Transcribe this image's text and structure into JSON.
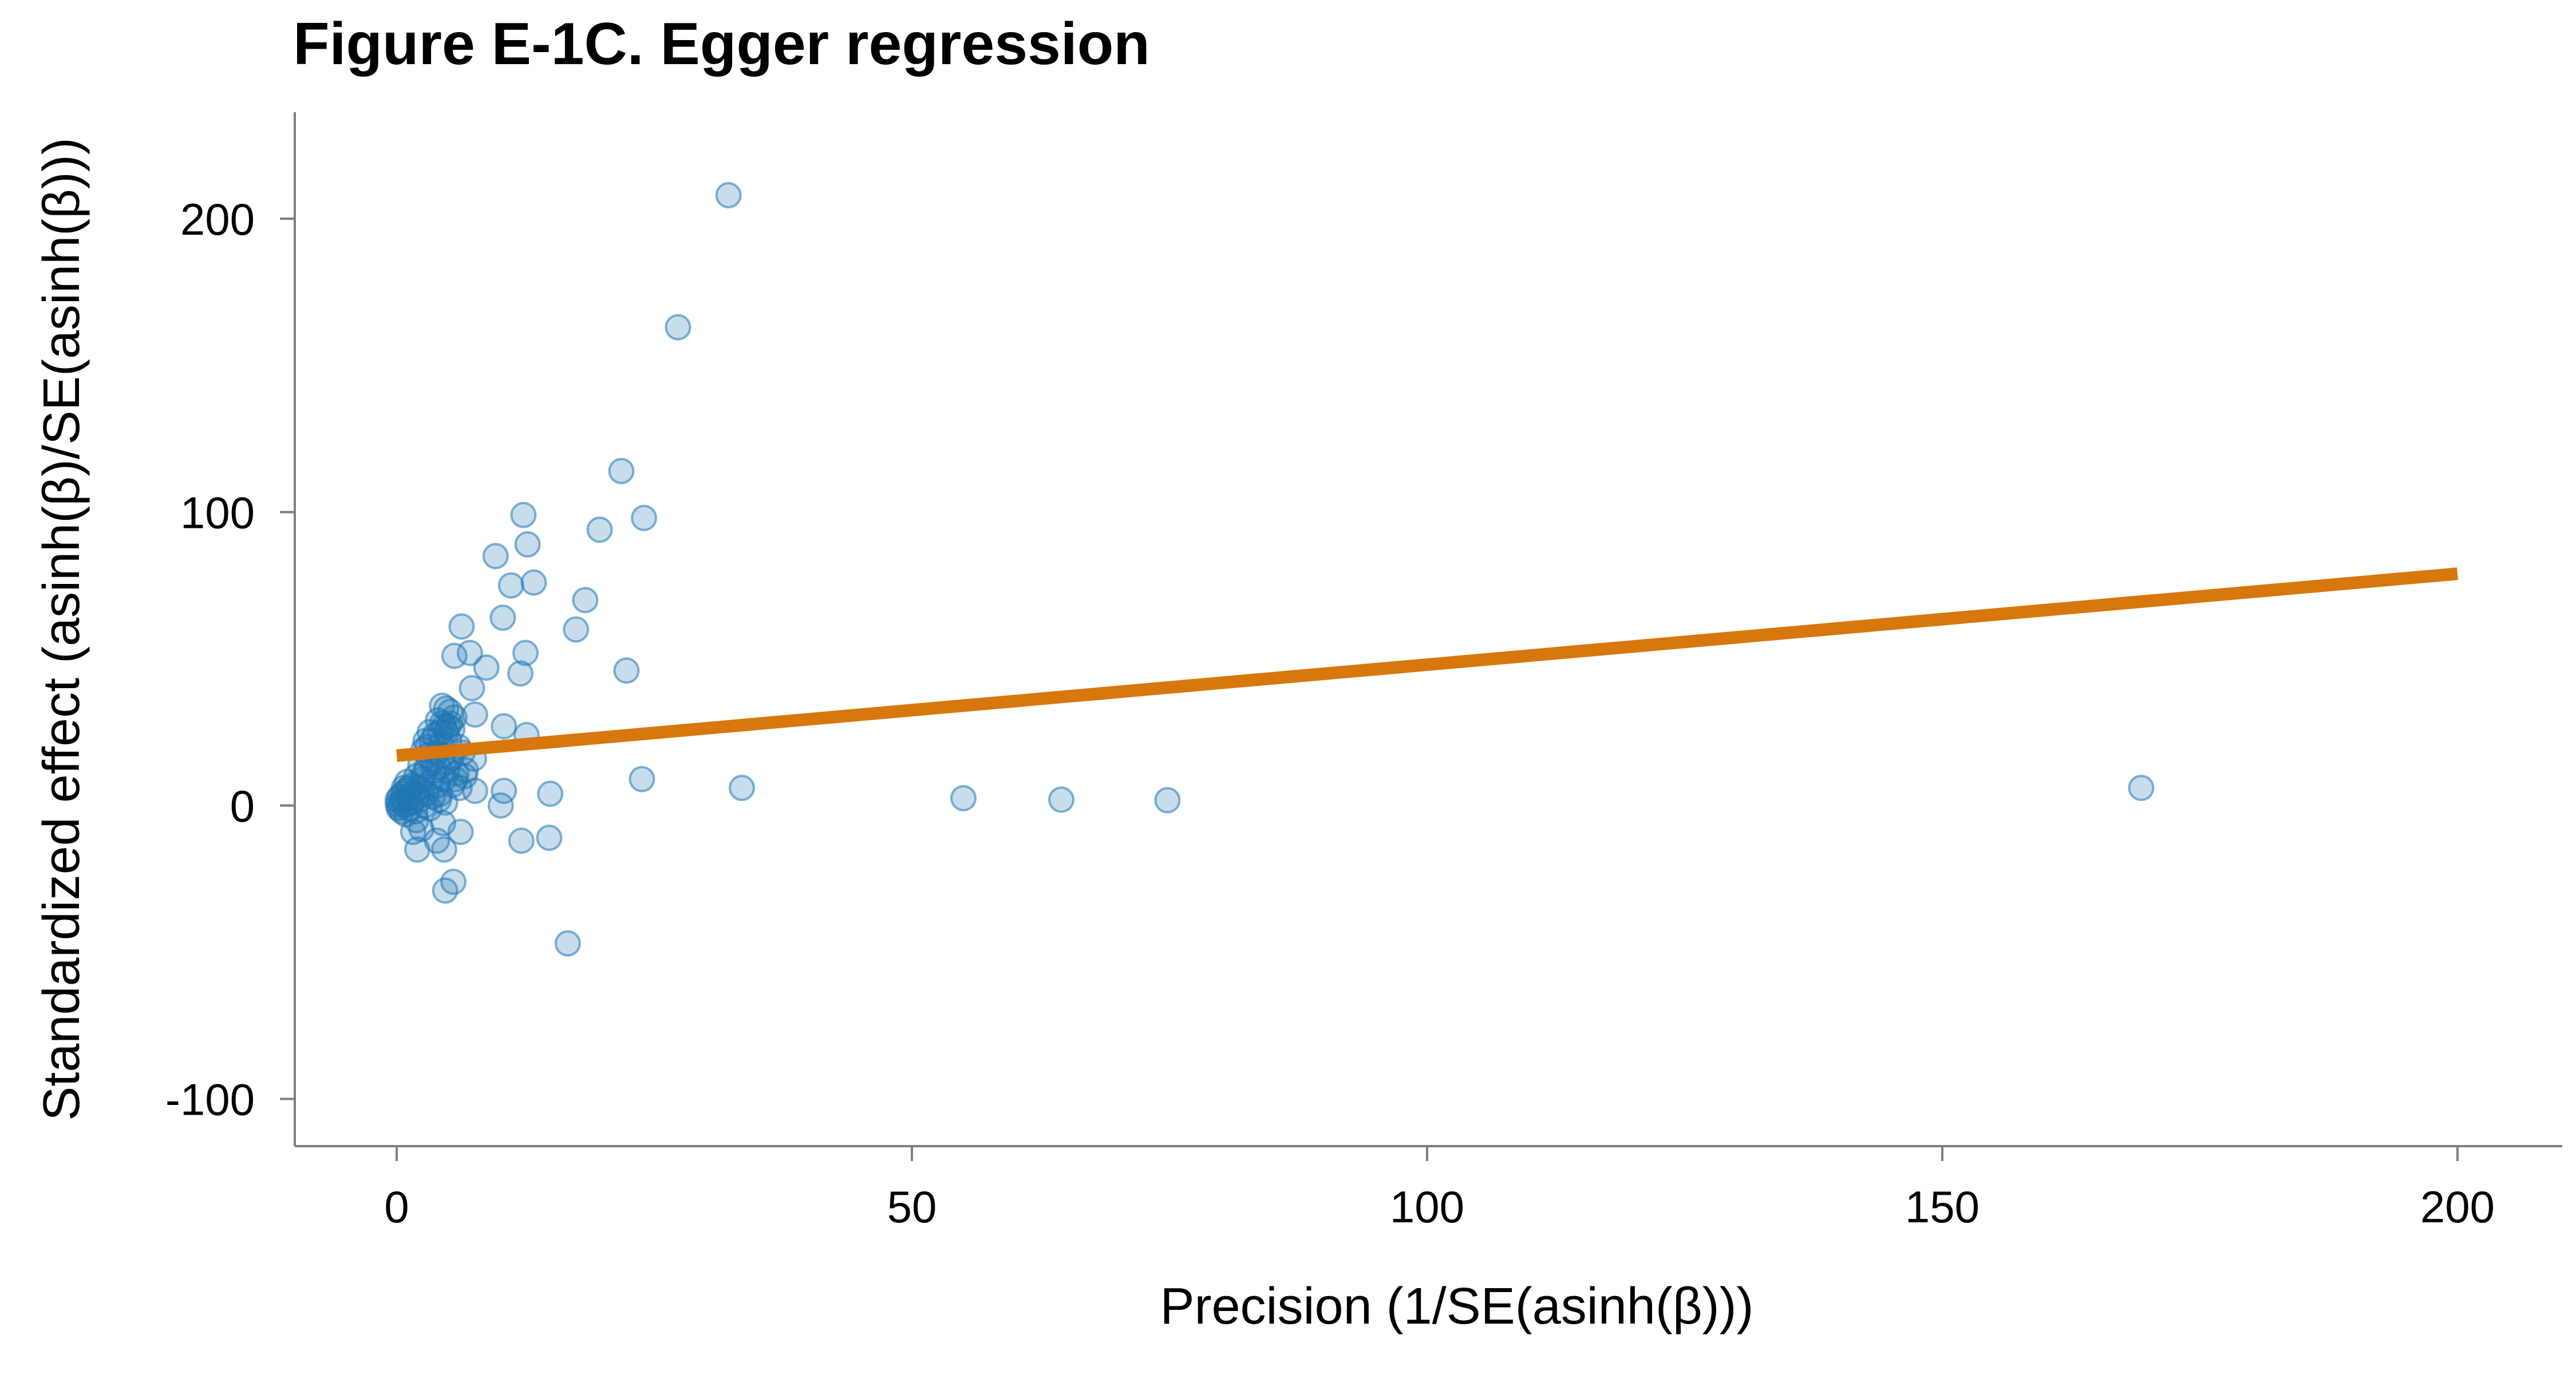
{
  "chart_data": {
    "type": "scatter",
    "title": "Figure E-1C. Egger regression",
    "xlabel": "Precision (1/SE(asinh(β)))",
    "ylabel": "Standardized effect (asinh(β)/SE(asinh(β)))",
    "xlim": [
      -10,
      210
    ],
    "ylim": [
      -115,
      236
    ],
    "x_ticks": [
      0,
      50,
      100,
      150,
      200
    ],
    "y_ticks": [
      -100,
      0,
      100,
      200
    ],
    "x_tick_labels": [
      "0",
      "50",
      "100",
      "150",
      "200"
    ],
    "y_tick_labels": [
      "-100",
      "0",
      "100",
      "200"
    ],
    "grid": false,
    "colors": {
      "points": "#1f77b4",
      "fit_line": "#d8770d"
    },
    "fit_line": {
      "x": [
        0,
        200
      ],
      "y": [
        17,
        79
      ]
    },
    "points": [
      [
        32.2,
        208
      ],
      [
        27.3,
        163
      ],
      [
        21.8,
        114
      ],
      [
        24.0,
        98
      ],
      [
        19.7,
        94
      ],
      [
        12.3,
        99
      ],
      [
        12.7,
        89
      ],
      [
        9.6,
        85
      ],
      [
        13.3,
        76
      ],
      [
        11.1,
        75
      ],
      [
        18.3,
        70
      ],
      [
        10.3,
        64
      ],
      [
        17.4,
        60
      ],
      [
        6.3,
        61
      ],
      [
        7.1,
        52
      ],
      [
        5.6,
        51
      ],
      [
        12.5,
        52
      ],
      [
        8.7,
        47
      ],
      [
        12.0,
        45
      ],
      [
        22.3,
        46
      ],
      [
        7.3,
        40
      ],
      [
        4.4,
        34
      ],
      [
        4.8,
        33
      ],
      [
        5.2,
        32
      ],
      [
        5.6,
        30
      ],
      [
        4.0,
        29
      ],
      [
        7.6,
        31
      ],
      [
        4.6,
        27
      ],
      [
        5.0,
        27
      ],
      [
        5.4,
        26
      ],
      [
        4.2,
        25
      ],
      [
        3.7,
        24
      ],
      [
        3.2,
        25
      ],
      [
        10.4,
        27
      ],
      [
        12.6,
        24
      ],
      [
        2.8,
        22
      ],
      [
        3.4,
        22
      ],
      [
        4.3,
        21
      ],
      [
        5.1,
        22
      ],
      [
        6.0,
        20
      ],
      [
        2.6,
        19
      ],
      [
        3.0,
        17
      ],
      [
        3.9,
        18
      ],
      [
        4.5,
        17
      ],
      [
        5.3,
        16
      ],
      [
        6.4,
        18
      ],
      [
        7.5,
        16
      ],
      [
        2.3,
        14
      ],
      [
        2.9,
        13
      ],
      [
        3.6,
        12
      ],
      [
        4.1,
        13
      ],
      [
        4.9,
        12
      ],
      [
        5.8,
        11
      ],
      [
        6.7,
        12
      ],
      [
        1.9,
        10
      ],
      [
        2.5,
        9
      ],
      [
        3.3,
        8
      ],
      [
        4.0,
        7
      ],
      [
        4.6,
        9
      ],
      [
        5.4,
        7
      ],
      [
        6.1,
        6
      ],
      [
        7.6,
        5
      ],
      [
        10.4,
        5
      ],
      [
        14.9,
        4
      ],
      [
        23.8,
        9
      ],
      [
        33.5,
        6
      ],
      [
        55.0,
        2.5
      ],
      [
        64.5,
        2
      ],
      [
        74.8,
        1.8
      ],
      [
        169.3,
        6
      ],
      [
        1.5,
        7
      ],
      [
        1.2,
        6
      ],
      [
        0.9,
        5
      ],
      [
        0.6,
        4
      ],
      [
        0.3,
        3
      ],
      [
        0.1,
        2
      ],
      [
        0.4,
        1
      ],
      [
        0.8,
        0
      ],
      [
        1.3,
        -1
      ],
      [
        1.8,
        -2
      ],
      [
        0.2,
        -1
      ],
      [
        0.5,
        -2
      ],
      [
        0.9,
        -3
      ],
      [
        1.4,
        1
      ],
      [
        2.0,
        3
      ],
      [
        2.4,
        5
      ],
      [
        2.9,
        4
      ],
      [
        3.5,
        3
      ],
      [
        4.1,
        2
      ],
      [
        4.7,
        1
      ],
      [
        0.1,
        0.5
      ],
      [
        0.3,
        -0.5
      ],
      [
        0.6,
        2
      ],
      [
        1.1,
        3
      ],
      [
        1.6,
        4
      ],
      [
        2.2,
        2
      ],
      [
        2.7,
        0
      ],
      [
        3.2,
        -1
      ],
      [
        1.9,
        -5
      ],
      [
        2.4,
        -8
      ],
      [
        1.6,
        -9
      ],
      [
        2.0,
        -15
      ],
      [
        3.9,
        -12
      ],
      [
        4.6,
        -15
      ],
      [
        4.5,
        -6
      ],
      [
        6.2,
        -9
      ],
      [
        4.7,
        -29
      ],
      [
        5.5,
        -26
      ],
      [
        10.1,
        0
      ],
      [
        12.1,
        -12
      ],
      [
        14.8,
        -11
      ],
      [
        16.6,
        -47
      ],
      [
        5.0,
        15
      ],
      [
        4.8,
        25
      ],
      [
        5.2,
        28
      ],
      [
        4.4,
        28
      ],
      [
        3.0,
        20
      ],
      [
        3.5,
        15
      ],
      [
        2.7,
        11
      ],
      [
        4.2,
        4
      ],
      [
        5.7,
        9
      ],
      [
        6.6,
        10
      ],
      [
        2.1,
        6
      ],
      [
        1.0,
        8
      ],
      [
        0.7,
        6
      ]
    ]
  }
}
